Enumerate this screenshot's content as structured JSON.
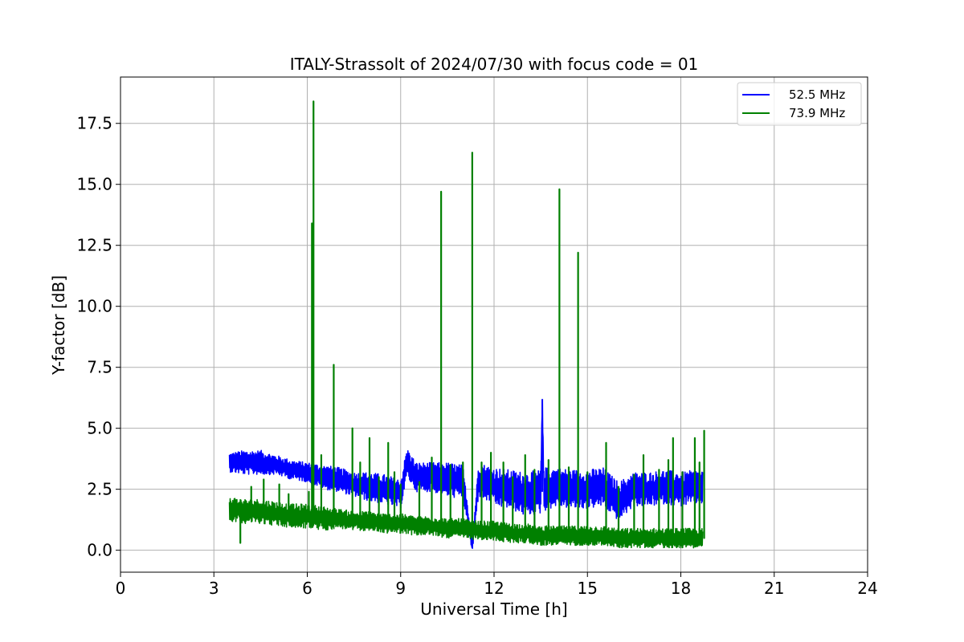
{
  "chart_data": {
    "type": "line",
    "title": "ITALY-Strassolt of 2024/07/30 with focus code = 01",
    "xlabel": "Universal Time [h]",
    "ylabel": "Y-factor [dB]",
    "xlim": [
      0,
      24
    ],
    "ylim": [
      -0.9,
      19.4
    ],
    "xticks": [
      0,
      3,
      6,
      9,
      12,
      15,
      18,
      21,
      24
    ],
    "xtick_labels": [
      "0",
      "3",
      "6",
      "9",
      "12",
      "15",
      "18",
      "21",
      "24"
    ],
    "yticks": [
      0.0,
      2.5,
      5.0,
      7.5,
      10.0,
      12.5,
      15.0,
      17.5
    ],
    "ytick_labels": [
      "0.0",
      "2.5",
      "5.0",
      "7.5",
      "10.0",
      "12.5",
      "15.0",
      "17.5"
    ],
    "grid": true,
    "legend_position": "top-right",
    "series": [
      {
        "name": "52.5 MHz",
        "color": "#0000ff",
        "x": [
          3.5,
          4.0,
          4.5,
          5.0,
          5.5,
          6.0,
          6.5,
          7.0,
          7.5,
          8.0,
          8.5,
          9.0,
          9.2,
          9.5,
          10.0,
          10.5,
          11.0,
          11.3,
          11.5,
          12.0,
          12.5,
          13.0,
          13.5,
          13.55,
          13.6,
          14.0,
          14.5,
          15.0,
          15.5,
          16.0,
          16.5,
          17.0,
          17.5,
          18.0,
          18.5,
          18.7
        ],
        "y": [
          3.6,
          3.6,
          3.6,
          3.5,
          3.3,
          3.2,
          3.0,
          2.9,
          2.7,
          2.6,
          2.5,
          2.3,
          3.6,
          3.0,
          3.0,
          2.9,
          2.8,
          0.1,
          2.9,
          2.6,
          2.5,
          2.3,
          2.4,
          6.2,
          2.5,
          2.6,
          2.5,
          2.5,
          2.6,
          2.0,
          2.5,
          2.5,
          2.6,
          2.5,
          2.6,
          2.6
        ],
        "band": [
          0.4,
          0.5,
          0.5,
          0.4,
          0.4,
          0.4,
          0.5,
          0.5,
          0.5,
          0.6,
          0.6,
          0.6,
          0.6,
          0.6,
          0.6,
          0.7,
          0.7,
          0.2,
          0.7,
          0.8,
          0.8,
          0.9,
          0.9,
          0.1,
          0.9,
          0.8,
          0.8,
          0.8,
          0.8,
          0.8,
          0.7,
          0.7,
          0.7,
          0.7,
          0.7,
          0.7
        ]
      },
      {
        "name": "73.9 MHz",
        "color": "#008000",
        "x": [
          3.5,
          4.0,
          4.5,
          5.0,
          5.5,
          6.0,
          6.5,
          7.0,
          7.5,
          8.0,
          8.5,
          9.0,
          9.5,
          10.0,
          10.5,
          11.0,
          11.5,
          12.0,
          12.5,
          13.0,
          13.5,
          14.0,
          14.5,
          15.0,
          15.5,
          16.0,
          16.5,
          17.0,
          17.5,
          18.0,
          18.5,
          18.7
        ],
        "y": [
          1.7,
          1.6,
          1.6,
          1.5,
          1.4,
          1.4,
          1.3,
          1.3,
          1.2,
          1.2,
          1.1,
          1.1,
          1.0,
          1.0,
          0.9,
          0.9,
          0.8,
          0.8,
          0.7,
          0.7,
          0.6,
          0.6,
          0.6,
          0.6,
          0.6,
          0.5,
          0.5,
          0.5,
          0.5,
          0.5,
          0.5,
          0.5
        ],
        "band": [
          0.5,
          0.5,
          0.5,
          0.5,
          0.5,
          0.5,
          0.5,
          0.4,
          0.4,
          0.4,
          0.4,
          0.4,
          0.4,
          0.4,
          0.4,
          0.4,
          0.4,
          0.4,
          0.4,
          0.4,
          0.4,
          0.4,
          0.4,
          0.4,
          0.4,
          0.4,
          0.4,
          0.4,
          0.4,
          0.4,
          0.4,
          0.4
        ],
        "spikes": [
          {
            "x": 3.85,
            "y": 0.3
          },
          {
            "x": 4.2,
            "y": 2.6
          },
          {
            "x": 4.6,
            "y": 2.9
          },
          {
            "x": 5.1,
            "y": 2.7
          },
          {
            "x": 5.4,
            "y": 2.3
          },
          {
            "x": 6.05,
            "y": 2.4
          },
          {
            "x": 6.15,
            "y": 13.4
          },
          {
            "x": 6.2,
            "y": 18.4
          },
          {
            "x": 6.45,
            "y": 3.9
          },
          {
            "x": 6.85,
            "y": 7.6
          },
          {
            "x": 7.45,
            "y": 5.0
          },
          {
            "x": 7.7,
            "y": 3.6
          },
          {
            "x": 8.0,
            "y": 4.6
          },
          {
            "x": 8.3,
            "y": 3.0
          },
          {
            "x": 8.6,
            "y": 4.4
          },
          {
            "x": 8.8,
            "y": 3.2
          },
          {
            "x": 9.0,
            "y": 2.7
          },
          {
            "x": 9.6,
            "y": 2.8
          },
          {
            "x": 10.0,
            "y": 3.8
          },
          {
            "x": 10.3,
            "y": 14.7
          },
          {
            "x": 10.6,
            "y": 3.5
          },
          {
            "x": 11.0,
            "y": 3.6
          },
          {
            "x": 11.3,
            "y": 16.3
          },
          {
            "x": 11.6,
            "y": 3.6
          },
          {
            "x": 11.9,
            "y": 4.0
          },
          {
            "x": 12.3,
            "y": 3.6
          },
          {
            "x": 12.6,
            "y": 3.0
          },
          {
            "x": 13.0,
            "y": 3.9
          },
          {
            "x": 13.3,
            "y": 3.3
          },
          {
            "x": 13.75,
            "y": 3.7
          },
          {
            "x": 14.1,
            "y": 14.8
          },
          {
            "x": 14.4,
            "y": 3.4
          },
          {
            "x": 14.7,
            "y": 12.2
          },
          {
            "x": 15.0,
            "y": 3.2
          },
          {
            "x": 15.6,
            "y": 4.4
          },
          {
            "x": 16.0,
            "y": 2.6
          },
          {
            "x": 16.5,
            "y": 3.1
          },
          {
            "x": 16.8,
            "y": 3.9
          },
          {
            "x": 17.3,
            "y": 3.3
          },
          {
            "x": 17.6,
            "y": 3.7
          },
          {
            "x": 17.75,
            "y": 4.6
          },
          {
            "x": 18.05,
            "y": 3.2
          },
          {
            "x": 18.45,
            "y": 4.6
          },
          {
            "x": 18.6,
            "y": 3.6
          },
          {
            "x": 18.75,
            "y": 4.9
          }
        ]
      }
    ]
  }
}
